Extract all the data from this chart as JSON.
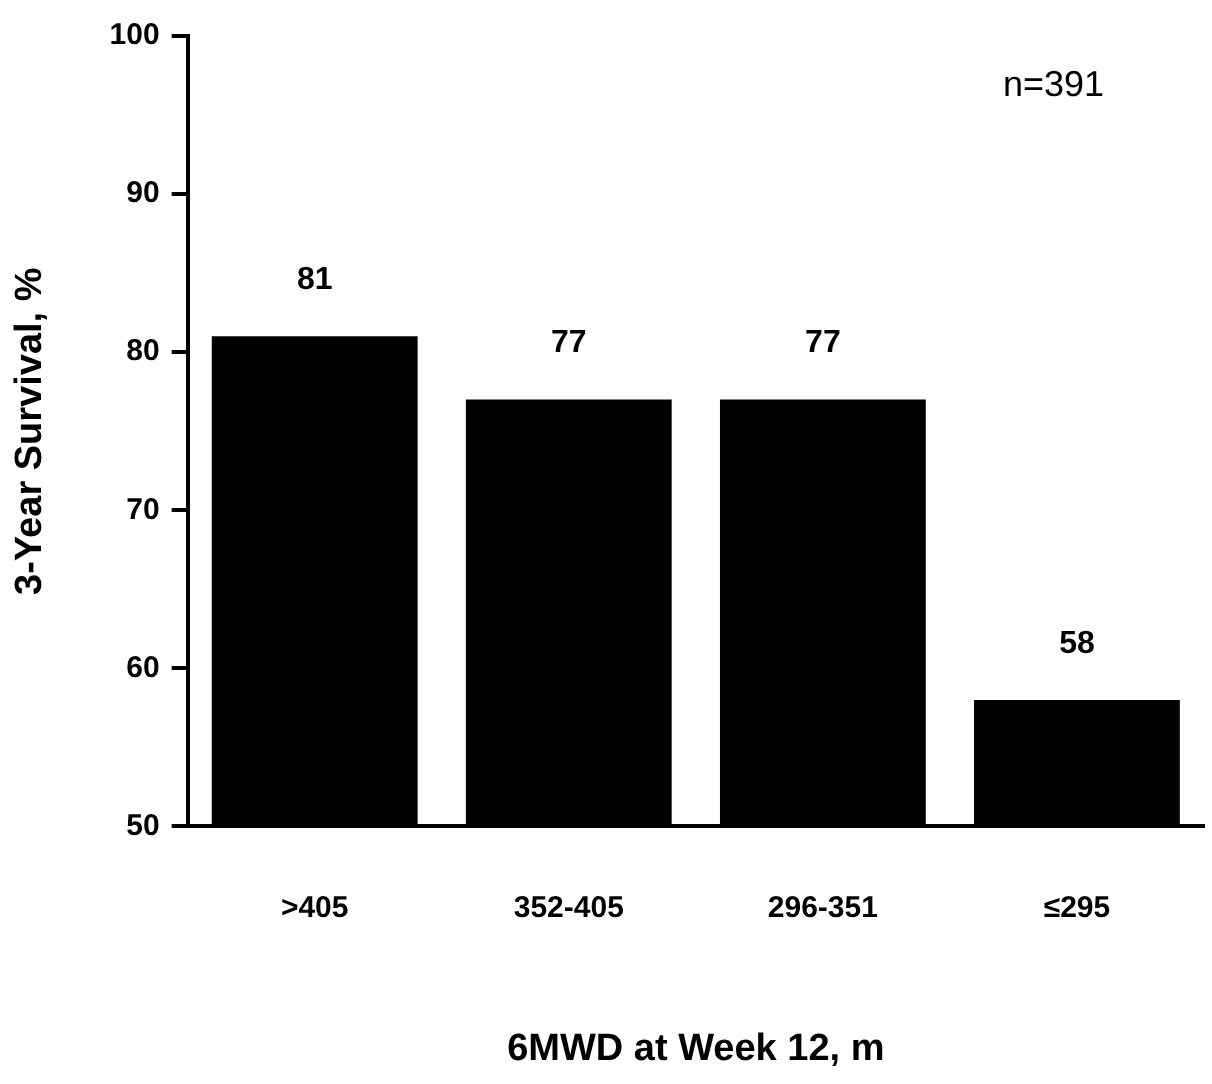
{
  "chart_data": {
    "type": "bar",
    "xlabel": "6MWD at Week 12, m",
    "ylabel": "3-Year Survival, %",
    "categories": [
      ">405",
      "352-405",
      "296-351",
      "≤295"
    ],
    "values": [
      81,
      77,
      77,
      58
    ],
    "color": "#000000",
    "ylim": [
      50,
      100
    ],
    "yticks": [
      50,
      60,
      70,
      80,
      90,
      100
    ],
    "grid": false,
    "legend": false,
    "data_labels": true,
    "annotations": [
      "n=391"
    ]
  }
}
